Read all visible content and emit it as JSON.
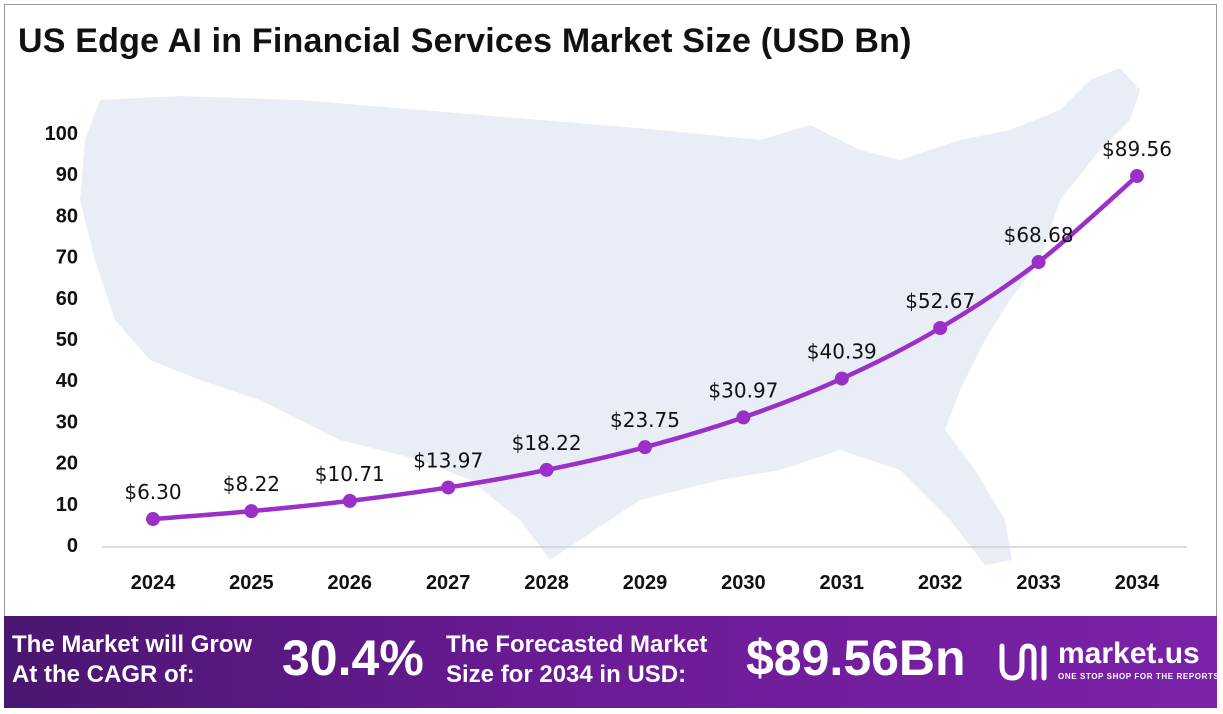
{
  "title": "US Edge AI in Financial Services Market Size (USD Bn)",
  "chart_data": {
    "type": "line",
    "categories": [
      "2024",
      "2025",
      "2026",
      "2027",
      "2028",
      "2029",
      "2030",
      "2031",
      "2032",
      "2033",
      "2034"
    ],
    "values": [
      6.3,
      8.22,
      10.71,
      13.97,
      18.22,
      23.75,
      30.97,
      40.39,
      52.67,
      68.68,
      89.56
    ],
    "data_labels": [
      "$6.30",
      "$8.22",
      "$10.71",
      "$13.97",
      "$18.22",
      "$23.75",
      "$30.97",
      "$40.39",
      "$52.67",
      "$68.68",
      "$89.56"
    ],
    "yticks": [
      "0",
      "10",
      "20",
      "30",
      "40",
      "50",
      "60",
      "70",
      "80",
      "90",
      "100"
    ],
    "ylim": [
      0,
      100
    ],
    "grid": false,
    "line_color": "#9b30c8",
    "background": "US map silhouette"
  },
  "footer": {
    "cagr_label_line1": "The Market will Grow",
    "cagr_label_line2": "At the CAGR of:",
    "cagr_value": "30.4%",
    "forecast_label_line1": "The Forecasted Market",
    "forecast_label_line2": "Size for 2034 in USD:",
    "forecast_value": "$89.56Bn",
    "brand_name": "market.us",
    "brand_tagline": "ONE STOP SHOP FOR THE REPORTS",
    "brand_icon": "market-us-logo-icon"
  },
  "colors": {
    "footer_bg": "#6a1b94",
    "line": "#9b30c8",
    "map": "#e8edf6"
  }
}
